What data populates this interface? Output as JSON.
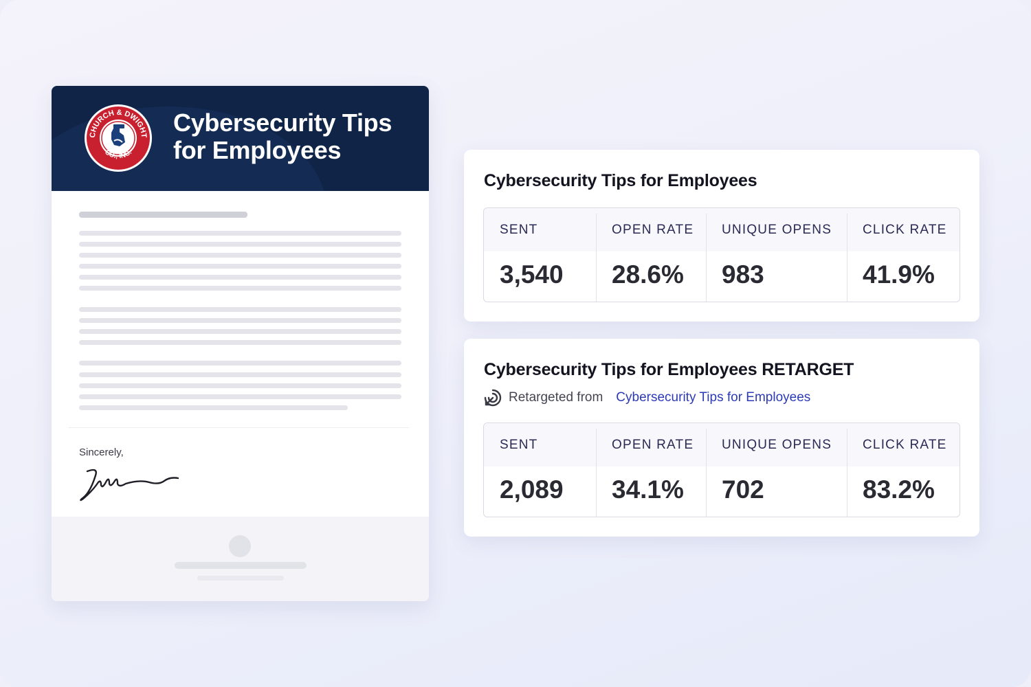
{
  "email_preview": {
    "logo_text": "CHURCH & DWIGHT CO., INC.",
    "title_line1": "Cybersecurity Tips",
    "title_line2": "for Employees",
    "closing": "Sincerely,"
  },
  "campaigns": [
    {
      "title": "Cybersecurity Tips for Employees",
      "stats": [
        {
          "label": "SENT",
          "value": "3,540"
        },
        {
          "label": "OPEN RATE",
          "value": "28.6%"
        },
        {
          "label": "UNIQUE OPENS",
          "value": "983"
        },
        {
          "label": "CLICK RATE",
          "value": "41.9%"
        }
      ]
    },
    {
      "title": "Cybersecurity Tips for Employees RETARGET",
      "retargeted_label": "Retargeted from",
      "retargeted_link": "Cybersecurity Tips for Employees",
      "stats": [
        {
          "label": "SENT",
          "value": "2,089"
        },
        {
          "label": "OPEN RATE",
          "value": "34.1%"
        },
        {
          "label": "UNIQUE OPENS",
          "value": "702"
        },
        {
          "label": "CLICK RATE",
          "value": "83.2%"
        }
      ]
    }
  ],
  "colors": {
    "header_navy": "#0f2447",
    "logo_red": "#c8202f",
    "link_blue": "#2d3ab5"
  },
  "icons": {
    "logo": "church-dwight-logo",
    "retarget": "retarget-icon"
  }
}
